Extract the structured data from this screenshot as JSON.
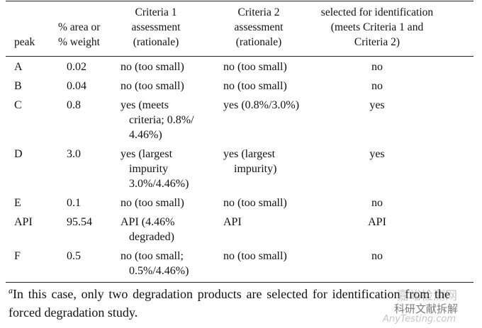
{
  "table": {
    "header": [
      [
        "peak"
      ],
      [
        "% area or",
        "% weight"
      ],
      [
        "Criteria 1",
        "assessment",
        "(rationale)"
      ],
      [
        "Criteria 2",
        "assessment",
        "(rationale)"
      ],
      [
        "selected for identification",
        "(meets Criteria 1 and",
        "Criteria 2)"
      ]
    ],
    "rows": [
      [
        [
          "A"
        ],
        [
          "0.02"
        ],
        [
          "no (too small)"
        ],
        [
          "no (too small)"
        ],
        [
          "no"
        ]
      ],
      [
        [
          "B"
        ],
        [
          "0.04"
        ],
        [
          "no (too small)"
        ],
        [
          "no (too small)"
        ],
        [
          "no"
        ]
      ],
      [
        [
          "C"
        ],
        [
          "0.8"
        ],
        [
          "yes (meets",
          "criteria; 0.8%/",
          "4.46%)"
        ],
        [
          "yes (0.8%/3.0%)"
        ],
        [
          "yes"
        ]
      ],
      [
        [
          "D"
        ],
        [
          "3.0"
        ],
        [
          "yes (largest",
          "impurity",
          "3.0%/4.46%)"
        ],
        [
          "yes (largest",
          "impurity)"
        ],
        [
          "yes"
        ]
      ],
      [
        [
          "E"
        ],
        [
          "0.1"
        ],
        [
          "no (too small)"
        ],
        [
          "no (too small)"
        ],
        [
          "no"
        ]
      ],
      [
        [
          "API"
        ],
        [
          "95.54"
        ],
        [
          "API (4.46%",
          "degraded)"
        ],
        [
          "API"
        ],
        [
          "API"
        ]
      ],
      [
        [
          "F"
        ],
        [
          "0.5"
        ],
        [
          "no (too small;",
          "0.5%/4.46%)"
        ],
        [
          "no (too small)"
        ],
        [
          "no"
        ]
      ]
    ]
  },
  "footnote": {
    "marker": "a",
    "text": "In this case, only two degradation products are selected for identification from the forced degradation study."
  },
  "watermark": [
    "嘉峪检测网",
    "科研文献拆解",
    "AnyTesting.com"
  ]
}
